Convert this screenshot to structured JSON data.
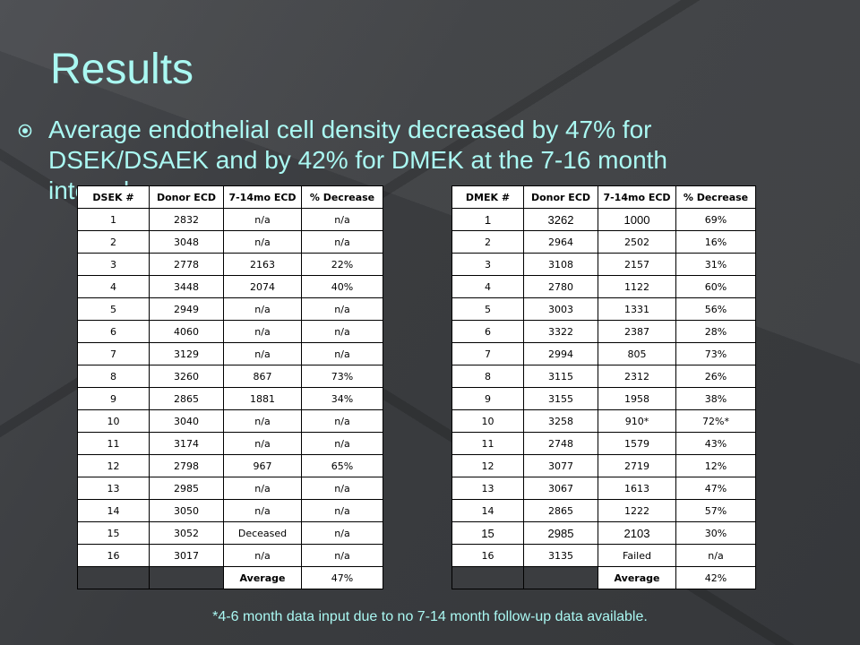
{
  "slide": {
    "title": "Results",
    "bullet": "Average endothelial cell density decreased by 47% for DSEK/DSAEK and by 42% for DMEK at the 7-16 month interval.",
    "footnote": "*4-6 month data input due to no 7-14 month follow-up data available.",
    "colors": {
      "text_accent": "#aaf8f2",
      "background": "#3b3d40"
    }
  },
  "table_left": {
    "headers": [
      "DSEK #",
      "Donor ECD",
      "7-14mo ECD",
      "% Decrease"
    ],
    "rows": [
      [
        "1",
        "2832",
        "n/a",
        "n/a"
      ],
      [
        "2",
        "3048",
        "n/a",
        "n/a"
      ],
      [
        "3",
        "2778",
        "2163",
        "22%"
      ],
      [
        "4",
        "3448",
        "2074",
        "40%"
      ],
      [
        "5",
        "2949",
        "n/a",
        "n/a"
      ],
      [
        "6",
        "4060",
        "n/a",
        "n/a"
      ],
      [
        "7",
        "3129",
        "n/a",
        "n/a"
      ],
      [
        "8",
        "3260",
        "867",
        "73%"
      ],
      [
        "9",
        "2865",
        "1881",
        "34%"
      ],
      [
        "10",
        "3040",
        "n/a",
        "n/a"
      ],
      [
        "11",
        "3174",
        "n/a",
        "n/a"
      ],
      [
        "12",
        "2798",
        "967",
        "65%"
      ],
      [
        "13",
        "2985",
        "n/a",
        "n/a"
      ],
      [
        "14",
        "3050",
        "n/a",
        "n/a"
      ],
      [
        "15",
        "3052",
        "Deceased",
        "n/a"
      ],
      [
        "16",
        "3017",
        "n/a",
        "n/a"
      ]
    ],
    "average_label": "Average",
    "average_value": "47%"
  },
  "table_right": {
    "headers": [
      "DMEK #",
      "Donor ECD",
      "7-14mo ECD",
      "% Decrease"
    ],
    "rows": [
      [
        "1",
        "3262",
        "1000",
        "69%"
      ],
      [
        "2",
        "2964",
        "2502",
        "16%"
      ],
      [
        "3",
        "3108",
        "2157",
        "31%"
      ],
      [
        "4",
        "2780",
        "1122",
        "60%"
      ],
      [
        "5",
        "3003",
        "1331",
        "56%"
      ],
      [
        "6",
        "3322",
        "2387",
        "28%"
      ],
      [
        "7",
        "2994",
        "805",
        "73%"
      ],
      [
        "8",
        "3115",
        "2312",
        "26%"
      ],
      [
        "9",
        "3155",
        "1958",
        "38%"
      ],
      [
        "10",
        "3258",
        "910*",
        "72%*"
      ],
      [
        "11",
        "2748",
        "1579",
        "43%"
      ],
      [
        "12",
        "3077",
        "2719",
        "12%"
      ],
      [
        "13",
        "3067",
        "1613",
        "47%"
      ],
      [
        "14",
        "2865",
        "1222",
        "57%"
      ],
      [
        "15",
        "2985",
        "2103",
        "30%"
      ],
      [
        "16",
        "3135",
        "Failed",
        "n/a"
      ]
    ],
    "average_label": "Average",
    "average_value": "42%"
  }
}
